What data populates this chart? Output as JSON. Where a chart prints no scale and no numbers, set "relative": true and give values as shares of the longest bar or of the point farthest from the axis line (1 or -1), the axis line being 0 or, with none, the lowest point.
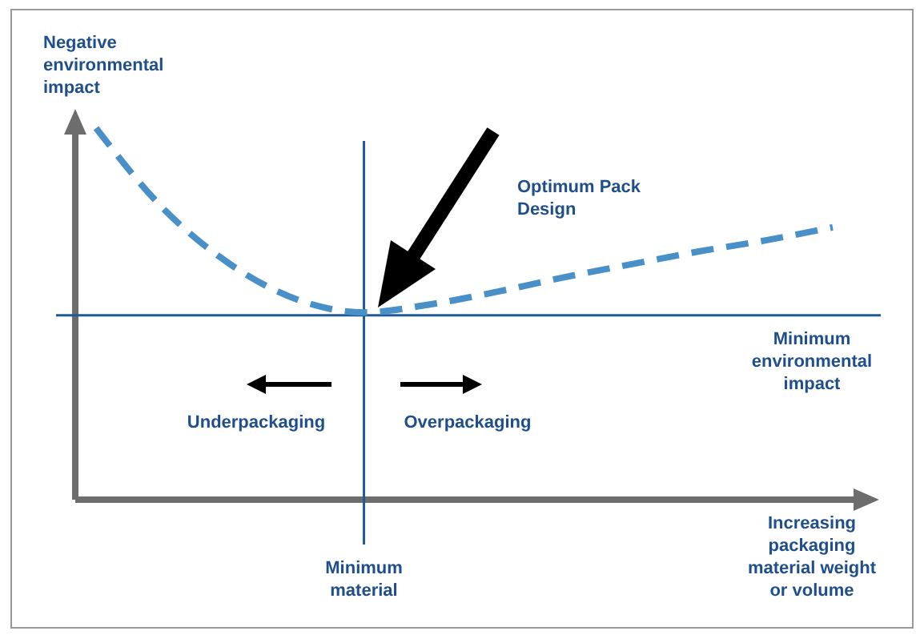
{
  "chart_data": {
    "type": "line",
    "relative": true,
    "xlabel": "Increasing packaging material weight or volume",
    "ylabel": "Negative environmental impact",
    "categories": [
      null,
      null,
      null,
      null,
      null,
      null,
      null,
      null,
      null,
      null,
      null,
      null
    ],
    "series": [
      {
        "color": "#4a90c8",
        "values": [
          1,
          0.784,
          0.634,
          0.539,
          0.504,
          0.526,
          0.56,
          0.599,
          0.634,
          0.668,
          0.698,
          0.733
        ]
      }
    ],
    "line_style": "dashed",
    "marker": "none",
    "ref_lines": [
      {
        "axis": "y",
        "value": 0.496,
        "label": "Minimum environmental impact",
        "color": "#1f5a96"
      }
    ],
    "annotations": [
      "Optimum Pack Design",
      "Underpackaging",
      "Overpackaging",
      "Minimum material"
    ]
  }
}
